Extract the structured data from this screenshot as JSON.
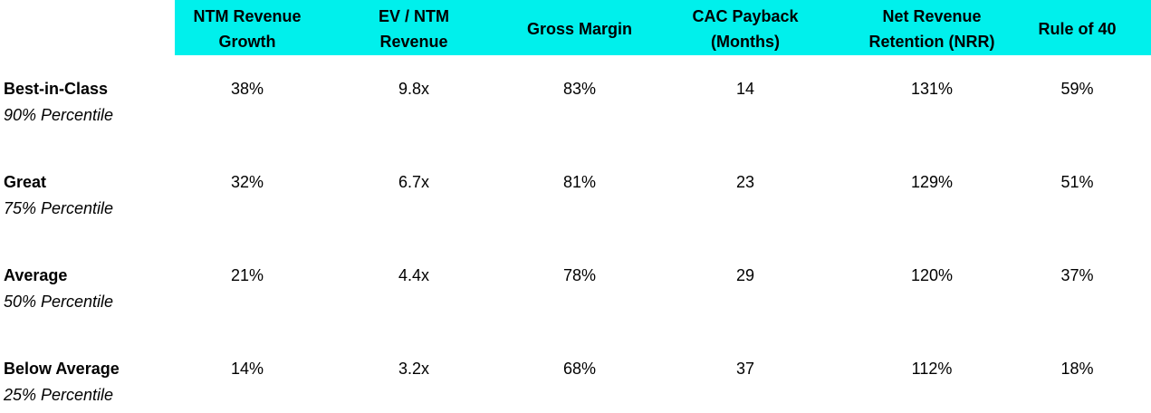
{
  "header": {
    "columns": [
      "NTM Revenue\nGrowth",
      "EV / NTM\nRevenue",
      "Gross Margin",
      "CAC Payback\n(Months)",
      "Net Revenue\nRetention (NRR)",
      "Rule of 40"
    ],
    "band_color": "#00f0ec"
  },
  "rows": [
    {
      "label": "Best-in-Class",
      "sublabel": "90% Percentile",
      "values": [
        "38%",
        "9.8x",
        "83%",
        "14",
        "131%",
        "59%"
      ]
    },
    {
      "label": "Great",
      "sublabel": "75% Percentile",
      "values": [
        "32%",
        "6.7x",
        "81%",
        "23",
        "129%",
        "51%"
      ]
    },
    {
      "label": "Average",
      "sublabel": "50% Percentile",
      "values": [
        "21%",
        "4.4x",
        "78%",
        "29",
        "120%",
        "37%"
      ]
    },
    {
      "label": "Below Average",
      "sublabel": "25% Percentile",
      "values": [
        "14%",
        "3.2x",
        "68%",
        "37",
        "112%",
        "18%"
      ]
    }
  ]
}
